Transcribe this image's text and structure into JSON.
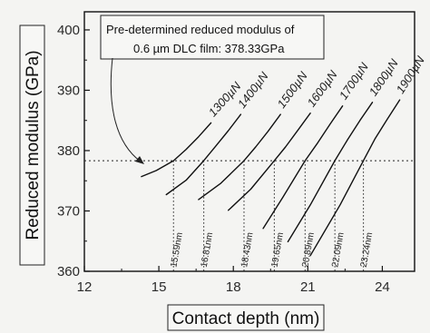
{
  "chart_data": {
    "type": "line",
    "xlabel": "Contact depth (nm)",
    "ylabel": "Reduced modulus (GPa)",
    "xlim": [
      12,
      25.3
    ],
    "ylim": [
      360,
      403
    ],
    "xticks": [
      12,
      15,
      18,
      21,
      24
    ],
    "yticks": [
      360,
      370,
      380,
      390,
      400
    ],
    "reference_line": {
      "y": 378.33,
      "style": "dotted"
    },
    "annotation": {
      "lines": [
        "Pre-determined reduced modulus of",
        "0.6 µm DLC film: 378.33GPa"
      ]
    },
    "series": [
      {
        "name": "1300µN",
        "x": [
          14.3,
          14.9,
          15.59,
          16.1,
          16.6,
          17.1
        ],
        "y": [
          375.7,
          376.7,
          378.33,
          380.2,
          382.3,
          384.6
        ],
        "depth_label": "15.59nm"
      },
      {
        "name": "1400µN",
        "x": [
          15.3,
          16.1,
          16.81,
          17.3,
          17.8,
          18.3
        ],
        "y": [
          372.7,
          375.1,
          378.33,
          380.8,
          383.3,
          386.0
        ],
        "depth_label": "16.81nm"
      },
      {
        "name": "1500µN",
        "x": [
          16.6,
          17.5,
          18.43,
          18.9,
          19.4,
          19.9
        ],
        "y": [
          371.9,
          374.6,
          378.33,
          380.6,
          383.2,
          386.0
        ],
        "depth_label": "18.43nm"
      },
      {
        "name": "1600µN",
        "x": [
          17.8,
          18.7,
          19.65,
          20.1,
          20.6,
          21.1
        ],
        "y": [
          370.1,
          373.6,
          378.33,
          380.6,
          383.4,
          386.2
        ],
        "depth_label": "19.65nm"
      },
      {
        "name": "1700µN",
        "x": [
          19.2,
          20.0,
          20.89,
          21.4,
          21.9,
          22.4
        ],
        "y": [
          367.1,
          372.3,
          378.33,
          381.3,
          384.4,
          387.4
        ],
        "depth_label": "20.89nm"
      },
      {
        "name": "1800µN",
        "x": [
          20.2,
          21.1,
          22.09,
          22.6,
          23.1,
          23.6
        ],
        "y": [
          364.9,
          371.0,
          378.33,
          381.8,
          385.0,
          388.0
        ],
        "depth_label": "22.09nm"
      },
      {
        "name": "1900µN",
        "x": [
          21.1,
          22.3,
          23.24,
          23.7,
          24.2,
          24.7
        ],
        "y": [
          362.6,
          371.0,
          378.33,
          381.9,
          385.2,
          388.4
        ],
        "depth_label": "23.24nm"
      }
    ]
  }
}
